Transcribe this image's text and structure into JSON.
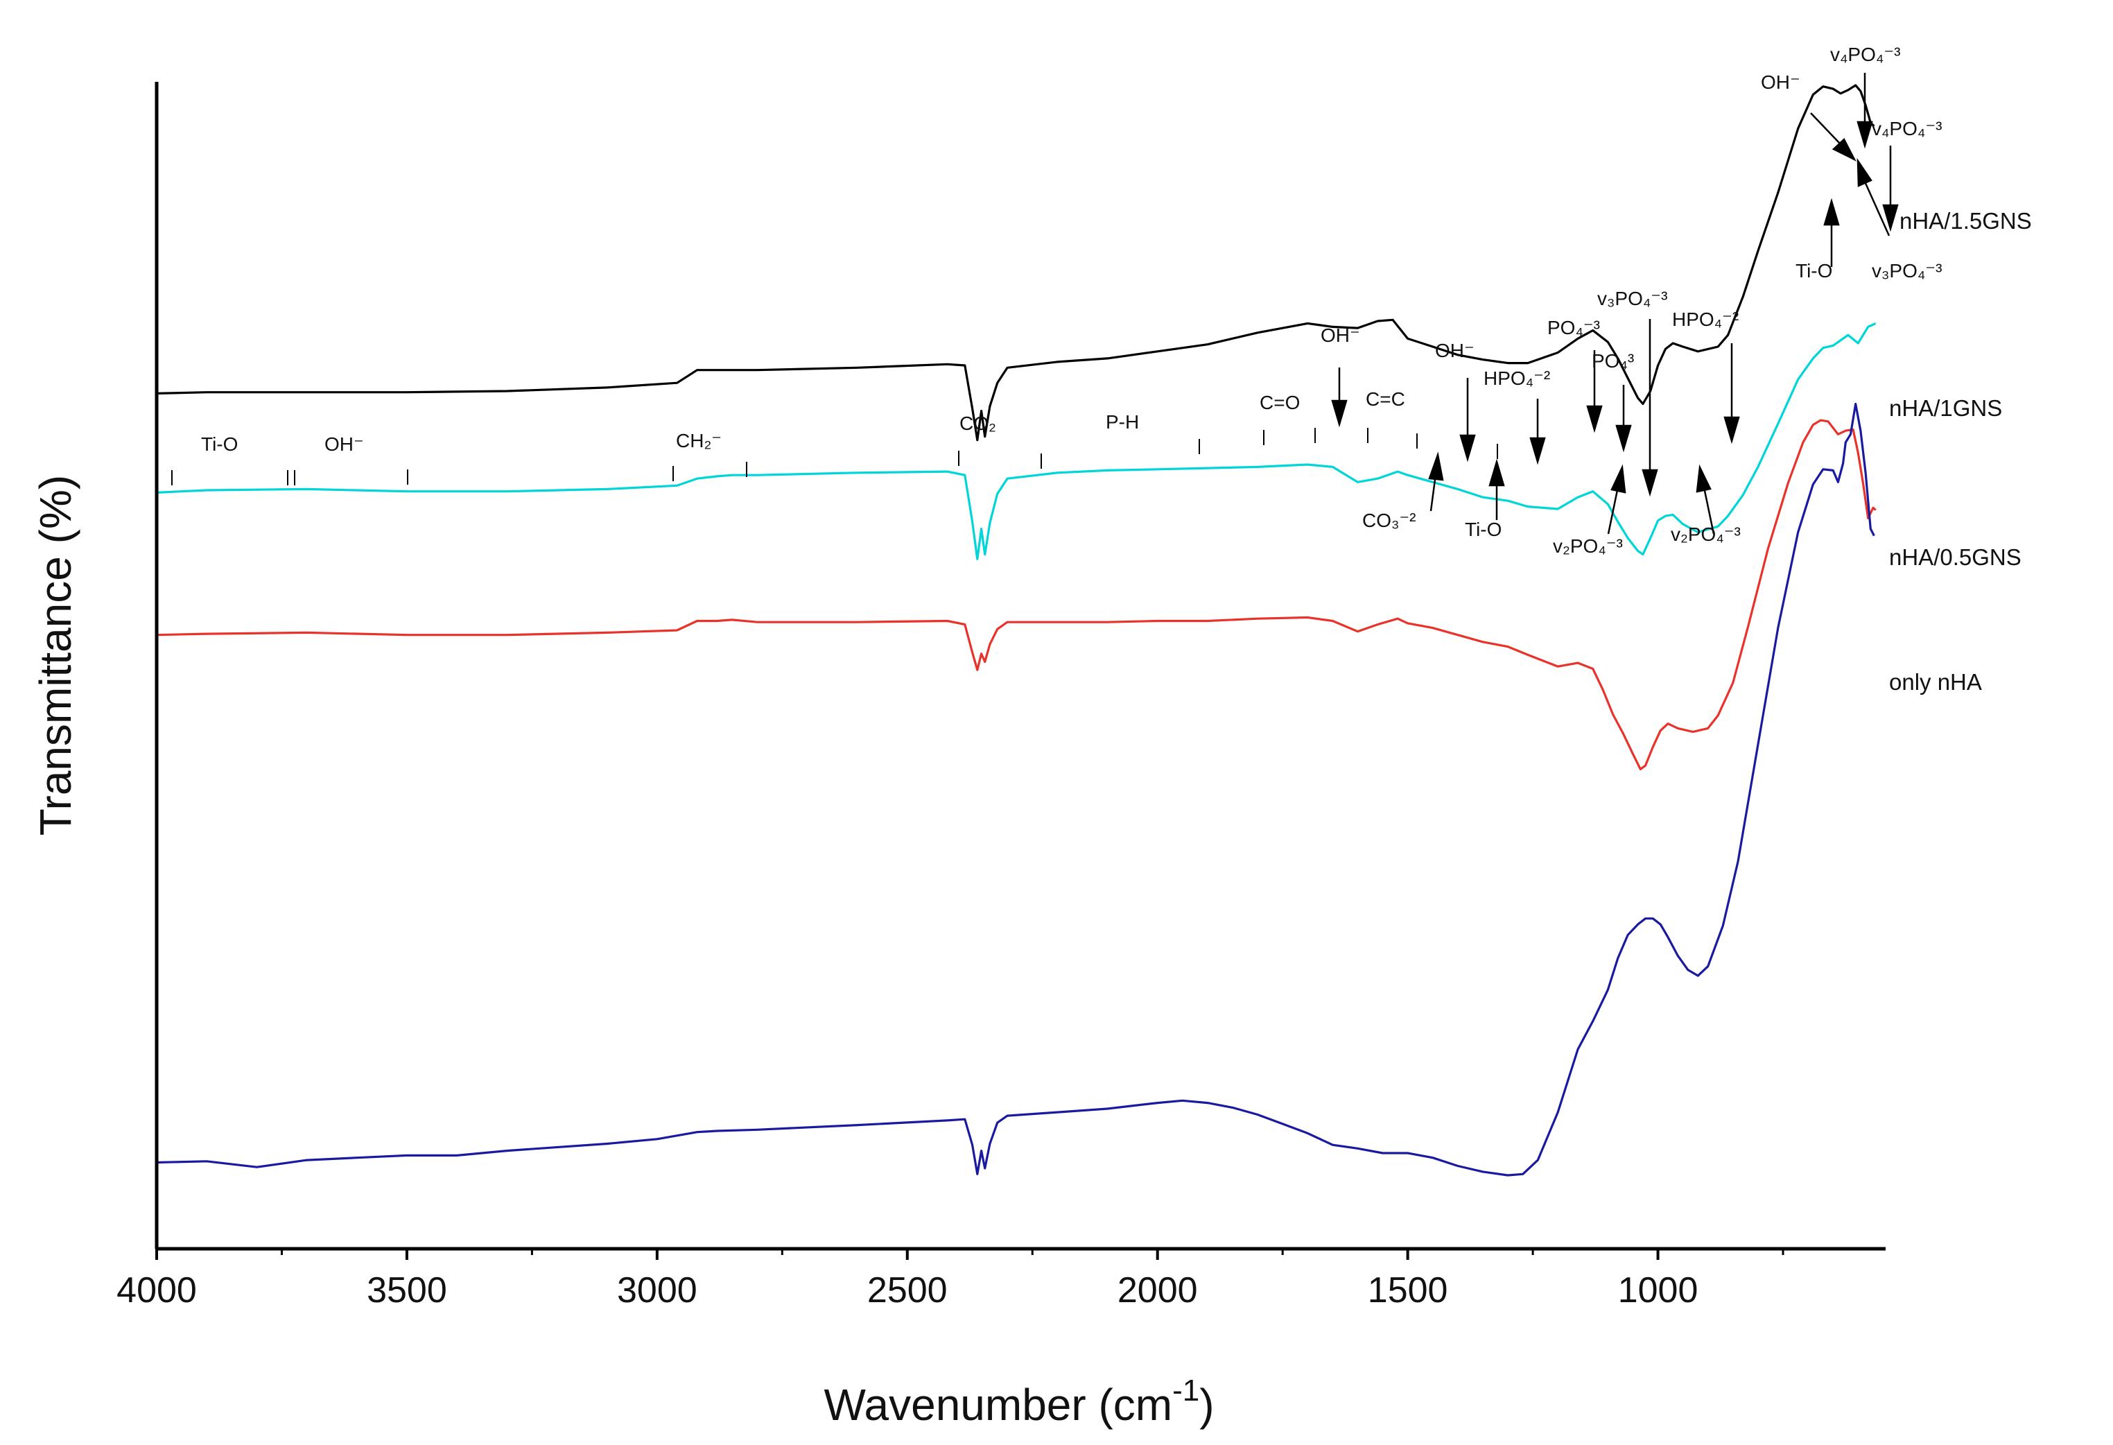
{
  "chart_data": {
    "type": "line",
    "title": "",
    "xlabel": "Wavenumber (cm",
    "xlabel_sup": "-1",
    "xlabel_close": ")",
    "ylabel": "Transmittance (%)",
    "xlim": [
      4000,
      545
    ],
    "xticks": [
      4000,
      3500,
      3000,
      2500,
      2000,
      1500,
      1000
    ],
    "xtick_labels": [
      "4000",
      "3500",
      "3000",
      "2500",
      "2000",
      "1500",
      "1000"
    ],
    "yticks_shown": false,
    "ylim": [
      0,
      100
    ],
    "series": [
      {
        "name": "nHA/1.5GNS",
        "color": "#000000",
        "points": [
          [
            4000,
            73.3
          ],
          [
            3900,
            73.4
          ],
          [
            3700,
            73.4
          ],
          [
            3500,
            73.4
          ],
          [
            3300,
            73.5
          ],
          [
            3100,
            73.8
          ],
          [
            2960,
            74.2
          ],
          [
            2920,
            75.3
          ],
          [
            2880,
            75.3
          ],
          [
            2850,
            75.3
          ],
          [
            2800,
            75.3
          ],
          [
            2600,
            75.5
          ],
          [
            2420,
            75.8
          ],
          [
            2385,
            75.7
          ],
          [
            2370,
            72.0
          ],
          [
            2360,
            69.3
          ],
          [
            2352,
            71.8
          ],
          [
            2345,
            69.6
          ],
          [
            2335,
            72.2
          ],
          [
            2320,
            74.2
          ],
          [
            2300,
            75.5
          ],
          [
            2200,
            76.0
          ],
          [
            2100,
            76.3
          ],
          [
            2000,
            76.9
          ],
          [
            1900,
            77.5
          ],
          [
            1800,
            78.5
          ],
          [
            1700,
            79.3
          ],
          [
            1650,
            79.0
          ],
          [
            1600,
            78.9
          ],
          [
            1560,
            79.5
          ],
          [
            1530,
            79.6
          ],
          [
            1500,
            78.0
          ],
          [
            1450,
            77.3
          ],
          [
            1400,
            76.6
          ],
          [
            1350,
            76.2
          ],
          [
            1300,
            75.9
          ],
          [
            1260,
            75.9
          ],
          [
            1200,
            76.8
          ],
          [
            1160,
            78.0
          ],
          [
            1130,
            78.7
          ],
          [
            1100,
            77.7
          ],
          [
            1080,
            76.3
          ],
          [
            1060,
            74.6
          ],
          [
            1040,
            72.9
          ],
          [
            1030,
            72.4
          ],
          [
            1015,
            73.5
          ],
          [
            1000,
            75.7
          ],
          [
            985,
            77.1
          ],
          [
            970,
            77.6
          ],
          [
            950,
            77.3
          ],
          [
            920,
            76.9
          ],
          [
            880,
            77.3
          ],
          [
            860,
            78.3
          ],
          [
            830,
            81.6
          ],
          [
            800,
            85.5
          ],
          [
            760,
            90.5
          ],
          [
            720,
            96.0
          ],
          [
            690,
            98.9
          ],
          [
            670,
            99.6
          ],
          [
            650,
            99.4
          ],
          [
            635,
            99.0
          ],
          [
            620,
            99.3
          ],
          [
            605,
            99.7
          ],
          [
            595,
            99.2
          ],
          [
            585,
            98.0
          ],
          [
            575,
            96.5
          ],
          [
            568,
            96.2
          ]
        ]
      },
      {
        "name": "nHA/1GNS",
        "color": "#00d5d8",
        "points": [
          [
            4000,
            64.8
          ],
          [
            3900,
            65.0
          ],
          [
            3700,
            65.1
          ],
          [
            3500,
            64.9
          ],
          [
            3300,
            64.9
          ],
          [
            3100,
            65.1
          ],
          [
            2960,
            65.4
          ],
          [
            2920,
            66.0
          ],
          [
            2880,
            66.2
          ],
          [
            2850,
            66.3
          ],
          [
            2800,
            66.3
          ],
          [
            2600,
            66.5
          ],
          [
            2420,
            66.6
          ],
          [
            2385,
            66.3
          ],
          [
            2370,
            62.3
          ],
          [
            2360,
            59.1
          ],
          [
            2352,
            61.7
          ],
          [
            2345,
            59.5
          ],
          [
            2335,
            62.2
          ],
          [
            2320,
            64.7
          ],
          [
            2300,
            66.0
          ],
          [
            2200,
            66.5
          ],
          [
            2100,
            66.7
          ],
          [
            2000,
            66.8
          ],
          [
            1900,
            66.9
          ],
          [
            1800,
            67.0
          ],
          [
            1700,
            67.2
          ],
          [
            1650,
            67.0
          ],
          [
            1600,
            65.7
          ],
          [
            1560,
            66.0
          ],
          [
            1520,
            66.6
          ],
          [
            1500,
            66.3
          ],
          [
            1450,
            65.7
          ],
          [
            1400,
            65.1
          ],
          [
            1350,
            64.4
          ],
          [
            1300,
            64.1
          ],
          [
            1260,
            63.6
          ],
          [
            1200,
            63.4
          ],
          [
            1160,
            64.4
          ],
          [
            1130,
            64.9
          ],
          [
            1100,
            63.8
          ],
          [
            1080,
            62.3
          ],
          [
            1060,
            60.9
          ],
          [
            1040,
            59.8
          ],
          [
            1030,
            59.5
          ],
          [
            1015,
            60.9
          ],
          [
            1000,
            62.4
          ],
          [
            985,
            62.8
          ],
          [
            970,
            62.9
          ],
          [
            950,
            62.1
          ],
          [
            920,
            61.4
          ],
          [
            880,
            61.9
          ],
          [
            860,
            62.8
          ],
          [
            830,
            64.6
          ],
          [
            800,
            67.0
          ],
          [
            760,
            70.7
          ],
          [
            720,
            74.5
          ],
          [
            690,
            76.3
          ],
          [
            670,
            77.2
          ],
          [
            650,
            77.4
          ],
          [
            620,
            78.3
          ],
          [
            600,
            77.6
          ],
          [
            580,
            79.0
          ],
          [
            565,
            79.3
          ]
        ]
      },
      {
        "name": "nHA/0.5GNS",
        "color": "#e8322a",
        "points": [
          [
            4000,
            52.6
          ],
          [
            3900,
            52.7
          ],
          [
            3700,
            52.8
          ],
          [
            3500,
            52.6
          ],
          [
            3300,
            52.6
          ],
          [
            3100,
            52.8
          ],
          [
            2960,
            53.0
          ],
          [
            2920,
            53.8
          ],
          [
            2880,
            53.8
          ],
          [
            2850,
            53.9
          ],
          [
            2800,
            53.7
          ],
          [
            2600,
            53.7
          ],
          [
            2420,
            53.8
          ],
          [
            2385,
            53.5
          ],
          [
            2370,
            51.1
          ],
          [
            2360,
            49.6
          ],
          [
            2352,
            51.0
          ],
          [
            2345,
            50.3
          ],
          [
            2335,
            51.8
          ],
          [
            2320,
            53.1
          ],
          [
            2300,
            53.7
          ],
          [
            2200,
            53.7
          ],
          [
            2100,
            53.7
          ],
          [
            2000,
            53.8
          ],
          [
            1900,
            53.8
          ],
          [
            1800,
            54.0
          ],
          [
            1700,
            54.1
          ],
          [
            1650,
            53.8
          ],
          [
            1600,
            52.9
          ],
          [
            1560,
            53.5
          ],
          [
            1520,
            54.0
          ],
          [
            1500,
            53.6
          ],
          [
            1450,
            53.2
          ],
          [
            1400,
            52.6
          ],
          [
            1350,
            52.0
          ],
          [
            1300,
            51.6
          ],
          [
            1260,
            50.9
          ],
          [
            1200,
            49.9
          ],
          [
            1160,
            50.2
          ],
          [
            1130,
            49.7
          ],
          [
            1110,
            47.9
          ],
          [
            1090,
            45.8
          ],
          [
            1070,
            44.2
          ],
          [
            1050,
            42.4
          ],
          [
            1035,
            41.1
          ],
          [
            1025,
            41.4
          ],
          [
            1010,
            43.0
          ],
          [
            995,
            44.4
          ],
          [
            980,
            45.0
          ],
          [
            960,
            44.6
          ],
          [
            930,
            44.3
          ],
          [
            900,
            44.6
          ],
          [
            880,
            45.7
          ],
          [
            850,
            48.5
          ],
          [
            820,
            53.3
          ],
          [
            780,
            60.0
          ],
          [
            740,
            65.6
          ],
          [
            710,
            69.1
          ],
          [
            690,
            70.6
          ],
          [
            675,
            71.0
          ],
          [
            660,
            70.9
          ],
          [
            640,
            69.8
          ],
          [
            625,
            70.1
          ],
          [
            610,
            70.2
          ],
          [
            600,
            68.2
          ],
          [
            590,
            65.6
          ],
          [
            580,
            62.6
          ],
          [
            570,
            63.5
          ],
          [
            565,
            63.3
          ]
        ]
      },
      {
        "name": "only nHA",
        "color": "#1a1aa0",
        "points": [
          [
            4000,
            7.4
          ],
          [
            3900,
            7.5
          ],
          [
            3800,
            7.0
          ],
          [
            3700,
            7.6
          ],
          [
            3600,
            7.8
          ],
          [
            3500,
            8.0
          ],
          [
            3400,
            8.0
          ],
          [
            3300,
            8.4
          ],
          [
            3100,
            9.0
          ],
          [
            3000,
            9.4
          ],
          [
            2920,
            10.0
          ],
          [
            2880,
            10.1
          ],
          [
            2800,
            10.2
          ],
          [
            2600,
            10.6
          ],
          [
            2420,
            11.0
          ],
          [
            2385,
            11.1
          ],
          [
            2370,
            8.9
          ],
          [
            2360,
            6.4
          ],
          [
            2352,
            8.4
          ],
          [
            2345,
            6.9
          ],
          [
            2335,
            9.0
          ],
          [
            2320,
            10.8
          ],
          [
            2300,
            11.4
          ],
          [
            2200,
            11.7
          ],
          [
            2100,
            12.0
          ],
          [
            2000,
            12.5
          ],
          [
            1950,
            12.7
          ],
          [
            1900,
            12.5
          ],
          [
            1850,
            12.1
          ],
          [
            1800,
            11.5
          ],
          [
            1750,
            10.7
          ],
          [
            1700,
            9.9
          ],
          [
            1650,
            8.9
          ],
          [
            1600,
            8.6
          ],
          [
            1550,
            8.2
          ],
          [
            1500,
            8.2
          ],
          [
            1450,
            7.8
          ],
          [
            1400,
            7.1
          ],
          [
            1350,
            6.6
          ],
          [
            1300,
            6.3
          ],
          [
            1270,
            6.4
          ],
          [
            1240,
            7.6
          ],
          [
            1200,
            11.7
          ],
          [
            1160,
            17.1
          ],
          [
            1130,
            19.5
          ],
          [
            1100,
            22.2
          ],
          [
            1080,
            24.9
          ],
          [
            1060,
            26.9
          ],
          [
            1040,
            27.8
          ],
          [
            1025,
            28.3
          ],
          [
            1010,
            28.3
          ],
          [
            995,
            27.8
          ],
          [
            980,
            26.7
          ],
          [
            960,
            25.1
          ],
          [
            940,
            23.9
          ],
          [
            920,
            23.4
          ],
          [
            900,
            24.2
          ],
          [
            870,
            27.7
          ],
          [
            840,
            33.2
          ],
          [
            800,
            43.2
          ],
          [
            760,
            53.2
          ],
          [
            720,
            61.4
          ],
          [
            690,
            65.5
          ],
          [
            670,
            66.8
          ],
          [
            650,
            66.7
          ],
          [
            640,
            65.7
          ],
          [
            630,
            67.3
          ],
          [
            625,
            69.1
          ],
          [
            615,
            69.8
          ],
          [
            605,
            72.4
          ],
          [
            595,
            70.1
          ],
          [
            585,
            66.5
          ],
          [
            575,
            61.7
          ],
          [
            568,
            61.1
          ]
        ]
      }
    ],
    "annotations": [
      {
        "text": "Ti-O",
        "note": "top band labels"
      },
      {
        "text": "OH⁻"
      },
      {
        "text": "CH₂⁻"
      },
      {
        "text": "CO₂"
      },
      {
        "text": "P-H"
      },
      {
        "text": "C=O"
      },
      {
        "text": "OH⁻"
      },
      {
        "text": "C=C"
      },
      {
        "text": "OH⁻"
      },
      {
        "text": "HPO₄⁻²"
      },
      {
        "text": "PO₄⁻³"
      },
      {
        "text": "PO₄³"
      },
      {
        "text": "v₃PO₄⁻³"
      },
      {
        "text": "HPO₄⁻²"
      },
      {
        "text": "CO₃⁻²"
      },
      {
        "text": "Ti-O"
      },
      {
        "text": "v₂PO₄⁻³"
      },
      {
        "text": "v₂PO₄⁻³"
      },
      {
        "text": "OH⁻"
      },
      {
        "text": "v₄PO₄⁻³"
      },
      {
        "text": "v₄PO₄⁻³"
      },
      {
        "text": "Ti-O"
      },
      {
        "text": "v₃PO₄⁻³"
      }
    ]
  }
}
